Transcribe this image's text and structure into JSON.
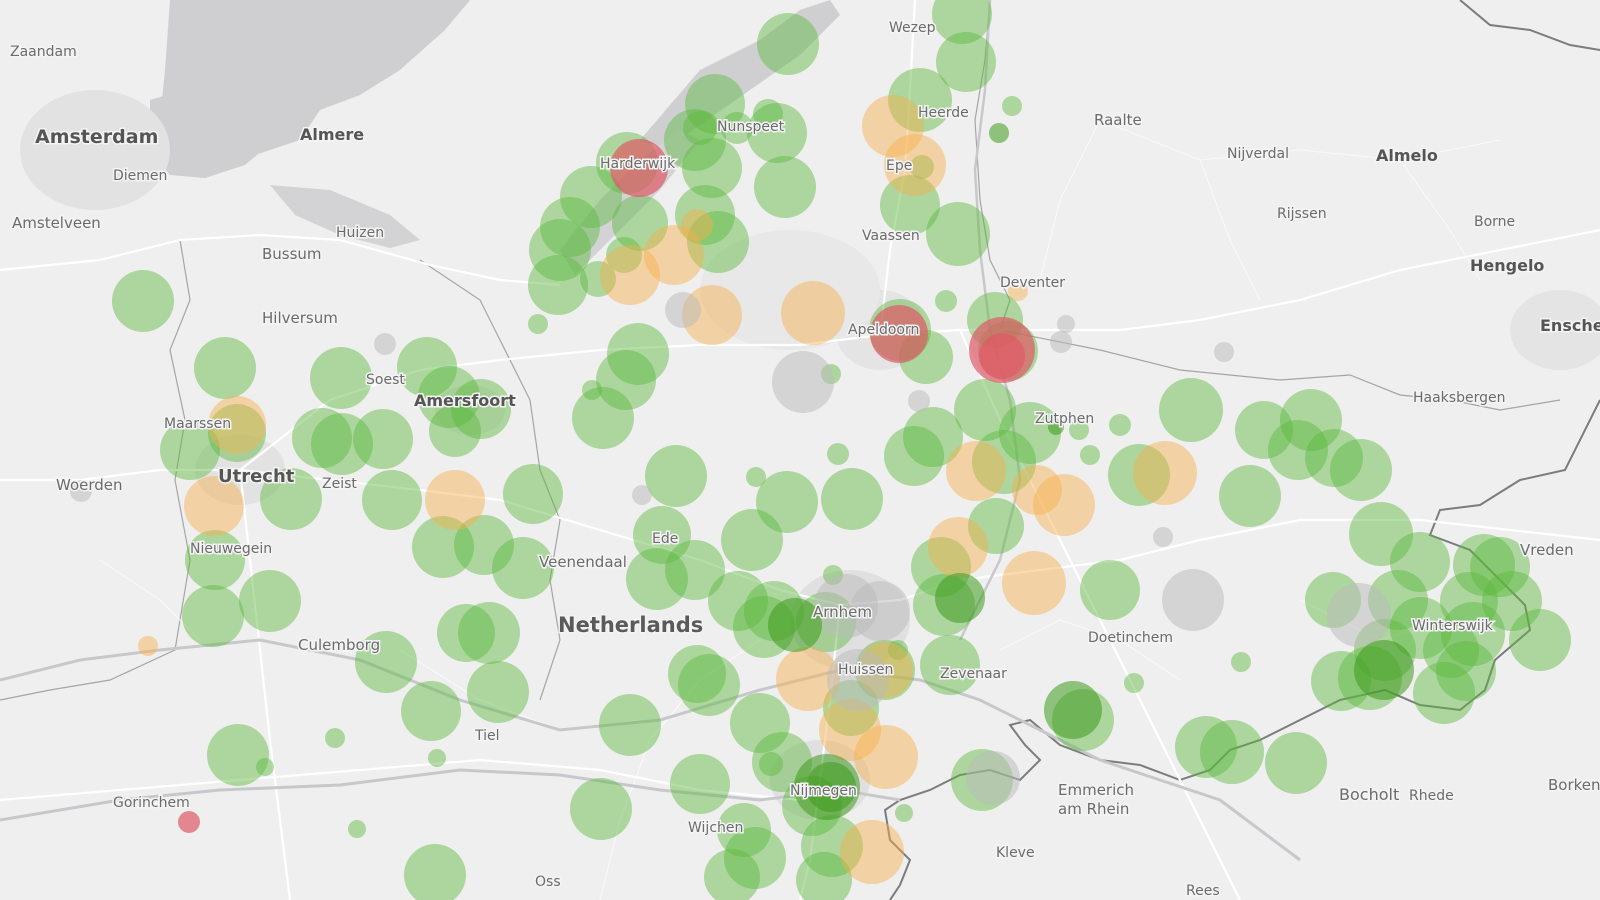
{
  "map": {
    "status_colors": {
      "green": "#5cb83c",
      "orange": "#f6b04a",
      "red": "#e05a66",
      "gray": "#b9b9b9",
      "dark_green": "#3e9a1e"
    },
    "places": [
      {
        "name": "Zaandam",
        "kind": "town"
      },
      {
        "name": "Amsterdam",
        "kind": "city"
      },
      {
        "name": "Almere",
        "kind": "city"
      },
      {
        "name": "Diemen",
        "kind": "town"
      },
      {
        "name": "Amstelveen",
        "kind": "town"
      },
      {
        "name": "Huizen",
        "kind": "town"
      },
      {
        "name": "Bussum",
        "kind": "town"
      },
      {
        "name": "Hilversum",
        "kind": "town"
      },
      {
        "name": "Soest",
        "kind": "town"
      },
      {
        "name": "Amersfoort",
        "kind": "city"
      },
      {
        "name": "Maarssen",
        "kind": "town"
      },
      {
        "name": "Utrecht",
        "kind": "city"
      },
      {
        "name": "Zeist",
        "kind": "town"
      },
      {
        "name": "Woerden",
        "kind": "town"
      },
      {
        "name": "Nieuwegein",
        "kind": "town"
      },
      {
        "name": "Culemborg",
        "kind": "town"
      },
      {
        "name": "Tiel",
        "kind": "town"
      },
      {
        "name": "Gorinchem",
        "kind": "town"
      },
      {
        "name": "Wijchen",
        "kind": "town"
      },
      {
        "name": "Oss",
        "kind": "town"
      },
      {
        "name": "Veenendaal",
        "kind": "town"
      },
      {
        "name": "Ede",
        "kind": "town"
      },
      {
        "name": "Netherlands",
        "kind": "country"
      },
      {
        "name": "Arnhem",
        "kind": "town"
      },
      {
        "name": "Huissen",
        "kind": "town"
      },
      {
        "name": "Zevenaar",
        "kind": "town"
      },
      {
        "name": "Nijmegen",
        "kind": "town"
      },
      {
        "name": "Kleve",
        "kind": "town"
      },
      {
        "name": "Emmerich",
        "kind": "town"
      },
      {
        "name": "am Rhein",
        "kind": "town"
      },
      {
        "name": "Rees",
        "kind": "town"
      },
      {
        "name": "Doetinchem",
        "kind": "town"
      },
      {
        "name": "Bocholt",
        "kind": "town"
      },
      {
        "name": "Rhede",
        "kind": "town"
      },
      {
        "name": "Borken",
        "kind": "town"
      },
      {
        "name": "Winterswijk",
        "kind": "town"
      },
      {
        "name": "Vreden",
        "kind": "town"
      },
      {
        "name": "Haaksbergen",
        "kind": "town"
      },
      {
        "name": "Enschede",
        "kind": "city"
      },
      {
        "name": "Hengelo",
        "kind": "city"
      },
      {
        "name": "Borne",
        "kind": "town"
      },
      {
        "name": "Almelo",
        "kind": "city"
      },
      {
        "name": "Rijssen",
        "kind": "town"
      },
      {
        "name": "Nijverdal",
        "kind": "town"
      },
      {
        "name": "Raalte",
        "kind": "town"
      },
      {
        "name": "Deventer",
        "kind": "town"
      },
      {
        "name": "Zutphen",
        "kind": "town"
      },
      {
        "name": "Apeldoorn",
        "kind": "town"
      },
      {
        "name": "Vaassen",
        "kind": "town"
      },
      {
        "name": "Epe",
        "kind": "town"
      },
      {
        "name": "Heerde",
        "kind": "town"
      },
      {
        "name": "Wezep",
        "kind": "town"
      },
      {
        "name": "Nunspeet",
        "kind": "town"
      },
      {
        "name": "Harderwijk",
        "kind": "town"
      }
    ],
    "markers": [
      {
        "status": "green",
        "size": "l"
      },
      {
        "status": "green",
        "size": "l"
      },
      {
        "status": "green",
        "size": "l"
      },
      {
        "status": "green",
        "size": "l"
      },
      {
        "status": "green",
        "size": "l"
      },
      {
        "status": "green",
        "size": "l"
      },
      {
        "status": "green",
        "size": "l"
      },
      {
        "status": "green",
        "size": "l"
      },
      {
        "status": "green",
        "size": "l"
      },
      {
        "status": "green",
        "size": "l"
      },
      {
        "status": "green",
        "size": "l"
      },
      {
        "status": "green",
        "size": "l"
      },
      {
        "status": "green",
        "size": "l"
      },
      {
        "status": "green",
        "size": "l"
      },
      {
        "status": "green",
        "size": "l"
      },
      {
        "status": "green",
        "size": "l"
      },
      {
        "status": "green",
        "size": "l"
      },
      {
        "status": "green",
        "size": "l"
      },
      {
        "status": "green",
        "size": "l"
      },
      {
        "status": "green",
        "size": "l"
      },
      {
        "status": "green",
        "size": "l"
      },
      {
        "status": "green",
        "size": "l"
      },
      {
        "status": "green",
        "size": "l"
      },
      {
        "status": "green",
        "size": "l"
      },
      {
        "status": "green",
        "size": "l"
      },
      {
        "status": "green",
        "size": "l"
      },
      {
        "status": "green",
        "size": "l"
      },
      {
        "status": "green",
        "size": "l"
      },
      {
        "status": "green",
        "size": "l"
      },
      {
        "status": "green",
        "size": "l"
      },
      {
        "status": "green",
        "size": "l"
      },
      {
        "status": "green",
        "size": "l"
      },
      {
        "status": "green",
        "size": "l"
      },
      {
        "status": "green",
        "size": "l"
      },
      {
        "status": "green",
        "size": "l"
      },
      {
        "status": "green",
        "size": "l"
      },
      {
        "status": "green",
        "size": "l"
      },
      {
        "status": "green",
        "size": "l"
      },
      {
        "status": "green",
        "size": "l"
      },
      {
        "status": "green",
        "size": "l"
      },
      {
        "status": "green",
        "size": "l"
      },
      {
        "status": "green",
        "size": "l"
      },
      {
        "status": "green",
        "size": "l"
      },
      {
        "status": "green",
        "size": "l"
      },
      {
        "status": "green",
        "size": "l"
      },
      {
        "status": "green",
        "size": "l"
      },
      {
        "status": "green",
        "size": "l"
      },
      {
        "status": "green",
        "size": "l"
      },
      {
        "status": "green",
        "size": "l"
      },
      {
        "status": "green",
        "size": "l"
      },
      {
        "status": "green",
        "size": "l"
      },
      {
        "status": "green",
        "size": "l"
      },
      {
        "status": "green",
        "size": "l"
      },
      {
        "status": "green",
        "size": "l"
      },
      {
        "status": "green",
        "size": "l"
      },
      {
        "status": "green",
        "size": "l"
      },
      {
        "status": "green",
        "size": "l"
      },
      {
        "status": "green",
        "size": "l"
      },
      {
        "status": "green",
        "size": "l"
      },
      {
        "status": "green",
        "size": "l"
      },
      {
        "status": "green",
        "size": "l"
      },
      {
        "status": "green",
        "size": "l"
      },
      {
        "status": "green",
        "size": "l"
      },
      {
        "status": "green",
        "size": "l"
      },
      {
        "status": "green",
        "size": "l"
      },
      {
        "status": "green",
        "size": "l"
      },
      {
        "status": "green",
        "size": "l"
      },
      {
        "status": "green",
        "size": "l"
      },
      {
        "status": "green",
        "size": "l"
      },
      {
        "status": "green",
        "size": "l"
      },
      {
        "status": "green",
        "size": "l"
      },
      {
        "status": "green",
        "size": "l"
      },
      {
        "status": "green",
        "size": "l"
      },
      {
        "status": "green",
        "size": "l"
      },
      {
        "status": "green",
        "size": "l"
      },
      {
        "status": "green",
        "size": "l"
      },
      {
        "status": "green",
        "size": "l"
      },
      {
        "status": "green",
        "size": "l"
      },
      {
        "status": "green",
        "size": "l"
      },
      {
        "status": "green",
        "size": "l"
      },
      {
        "status": "green",
        "size": "l"
      },
      {
        "status": "green",
        "size": "l"
      },
      {
        "status": "green",
        "size": "l"
      },
      {
        "status": "green",
        "size": "l"
      },
      {
        "status": "green",
        "size": "l"
      },
      {
        "status": "green",
        "size": "l"
      },
      {
        "status": "green",
        "size": "l"
      },
      {
        "status": "green",
        "size": "l"
      },
      {
        "status": "green",
        "size": "l"
      },
      {
        "status": "green",
        "size": "l"
      },
      {
        "status": "green",
        "size": "l"
      },
      {
        "status": "green",
        "size": "l"
      },
      {
        "status": "green",
        "size": "l"
      },
      {
        "status": "green",
        "size": "l"
      },
      {
        "status": "green",
        "size": "l"
      },
      {
        "status": "green",
        "size": "l"
      },
      {
        "status": "green",
        "size": "l"
      },
      {
        "status": "green",
        "size": "l"
      },
      {
        "status": "green",
        "size": "l"
      },
      {
        "status": "green",
        "size": "l"
      },
      {
        "status": "green",
        "size": "l"
      },
      {
        "status": "green",
        "size": "l"
      },
      {
        "status": "green",
        "size": "l"
      },
      {
        "status": "green",
        "size": "l"
      },
      {
        "status": "green",
        "size": "l"
      },
      {
        "status": "green",
        "size": "l"
      },
      {
        "status": "green",
        "size": "l"
      },
      {
        "status": "green",
        "size": "l"
      },
      {
        "status": "green",
        "size": "l"
      },
      {
        "status": "green",
        "size": "l"
      },
      {
        "status": "green",
        "size": "l"
      },
      {
        "status": "green",
        "size": "l"
      },
      {
        "status": "green",
        "size": "l"
      },
      {
        "status": "green",
        "size": "l"
      },
      {
        "status": "green",
        "size": "l"
      },
      {
        "status": "green",
        "size": "l"
      },
      {
        "status": "green",
        "size": "l"
      },
      {
        "status": "green",
        "size": "l"
      },
      {
        "status": "green",
        "size": "l"
      },
      {
        "status": "green",
        "size": "l"
      },
      {
        "status": "green",
        "size": "l"
      },
      {
        "status": "green",
        "size": "l"
      },
      {
        "status": "green",
        "size": "l"
      },
      {
        "status": "green",
        "size": "l"
      },
      {
        "status": "green",
        "size": "l"
      },
      {
        "status": "green",
        "size": "l"
      },
      {
        "status": "green",
        "size": "l"
      },
      {
        "status": "green",
        "size": "l"
      },
      {
        "status": "green",
        "size": "l"
      },
      {
        "status": "green",
        "size": "l"
      },
      {
        "status": "green",
        "size": "l"
      },
      {
        "status": "green",
        "size": "l"
      },
      {
        "status": "green",
        "size": "l"
      },
      {
        "status": "green",
        "size": "l"
      },
      {
        "status": "green",
        "size": "l"
      },
      {
        "status": "green",
        "size": "l"
      },
      {
        "status": "green",
        "size": "l"
      },
      {
        "status": "green",
        "size": "l"
      },
      {
        "status": "green",
        "size": "l"
      },
      {
        "status": "green",
        "size": "l"
      },
      {
        "status": "green",
        "size": "l"
      },
      {
        "status": "green",
        "size": "l"
      },
      {
        "status": "green",
        "size": "l"
      },
      {
        "status": "green",
        "size": "l"
      },
      {
        "status": "green",
        "size": "l"
      },
      {
        "status": "green",
        "size": "l"
      },
      {
        "status": "orange",
        "size": "l"
      },
      {
        "status": "orange",
        "size": "l"
      },
      {
        "status": "orange",
        "size": "l"
      },
      {
        "status": "orange",
        "size": "l"
      },
      {
        "status": "orange",
        "size": "l"
      },
      {
        "status": "orange",
        "size": "l"
      },
      {
        "status": "orange",
        "size": "l"
      },
      {
        "status": "orange",
        "size": "l"
      },
      {
        "status": "orange",
        "size": "l"
      },
      {
        "status": "orange",
        "size": "l"
      },
      {
        "status": "orange",
        "size": "l"
      },
      {
        "status": "orange",
        "size": "l"
      },
      {
        "status": "orange",
        "size": "l"
      },
      {
        "status": "orange",
        "size": "l"
      },
      {
        "status": "orange",
        "size": "l"
      },
      {
        "status": "orange",
        "size": "l"
      },
      {
        "status": "orange",
        "size": "l"
      },
      {
        "status": "orange",
        "size": "l"
      },
      {
        "status": "orange",
        "size": "l"
      },
      {
        "status": "orange",
        "size": "l"
      },
      {
        "status": "orange",
        "size": "l"
      },
      {
        "status": "orange",
        "size": "l"
      },
      {
        "status": "orange",
        "size": "l"
      },
      {
        "status": "gray",
        "size": "l"
      },
      {
        "status": "gray",
        "size": "l"
      },
      {
        "status": "gray",
        "size": "l"
      },
      {
        "status": "gray",
        "size": "l"
      },
      {
        "status": "gray",
        "size": "l"
      },
      {
        "status": "gray",
        "size": "l"
      },
      {
        "status": "gray",
        "size": "l"
      },
      {
        "status": "gray",
        "size": "l"
      },
      {
        "status": "gray",
        "size": "l"
      },
      {
        "status": "gray",
        "size": "l"
      },
      {
        "status": "gray",
        "size": "l"
      },
      {
        "status": "gray",
        "size": "l"
      },
      {
        "status": "gray",
        "size": "l"
      },
      {
        "status": "gray",
        "size": "l"
      },
      {
        "status": "gray",
        "size": "l"
      },
      {
        "status": "gray",
        "size": "l"
      },
      {
        "status": "red",
        "size": "l"
      },
      {
        "status": "red",
        "size": "l"
      },
      {
        "status": "red",
        "size": "l"
      },
      {
        "status": "red",
        "size": "l"
      },
      {
        "status": "red",
        "size": "l"
      },
      {
        "status": "dark_green",
        "size": "l"
      },
      {
        "status": "dark_green",
        "size": "l"
      },
      {
        "status": "dark_green",
        "size": "l"
      },
      {
        "status": "dark_green",
        "size": "l"
      },
      {
        "status": "dark_green",
        "size": "l"
      },
      {
        "status": "dark_green",
        "size": "l"
      },
      {
        "status": "dark_green",
        "size": "l"
      },
      {
        "status": "dark_green",
        "size": "l"
      },
      {
        "status": "dark_green",
        "size": "l"
      },
      {
        "status": "dark_green",
        "size": "l"
      },
      {
        "status": "dark_green",
        "size": "l"
      },
      {
        "status": "dark_green",
        "size": "l"
      }
    ]
  }
}
